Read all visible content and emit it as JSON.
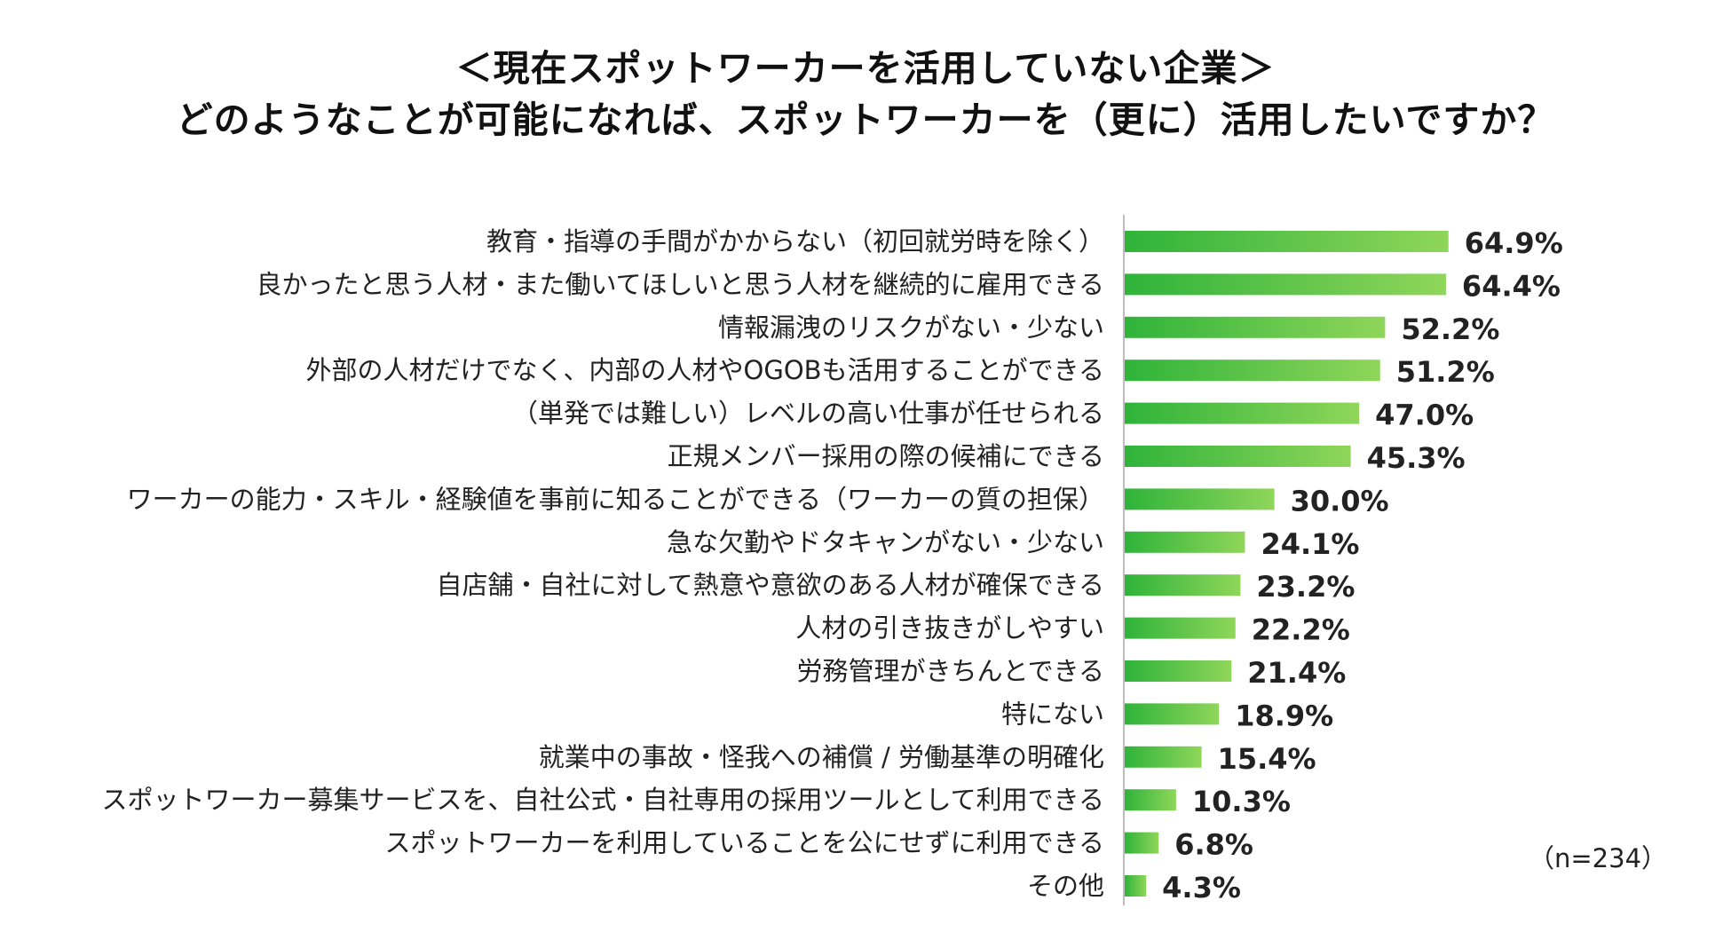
{
  "header": {
    "title_line1": "＜現在スポットワーカーを活用していない企業＞",
    "title_line2": "どのようなことが可能になれば、スポットワーカーを（更に）活用したいですか？"
  },
  "note": {
    "sample_size": "（n=234）"
  },
  "colors": {
    "bar_start": "#2fb33a",
    "bar_end": "#8fd65a",
    "axis": "#bdbdbd",
    "text": "#222222"
  },
  "chart_data": {
    "type": "bar",
    "orientation": "horizontal",
    "title": "どのようなことが可能になれば、スポットワーカーを（更に）活用したいですか？",
    "xlabel": "",
    "ylabel": "",
    "xlim": [
      0,
      100
    ],
    "value_suffix": "%",
    "categories": [
      "教育・指導の手間がかからない（初回就労時を除く）",
      "良かったと思う人材・また働いてほしいと思う人材を継続的に雇用できる",
      "情報漏洩のリスクがない・少ない",
      "外部の人材だけでなく、内部の人材やOGOBも活用することができる",
      "（単発では難しい）レベルの高い仕事が任せられる",
      "正規メンバー採用の際の候補にできる",
      "ワーカーの能力・スキル・経験値を事前に知ることができる（ワーカーの質の担保）",
      "急な欠勤やドタキャンがない・少ない",
      "自店舗・自社に対して熱意や意欲のある人材が確保できる",
      "人材の引き抜きがしやすい",
      "労務管理がきちんとできる",
      "特にない",
      "就業中の事故・怪我への補償 / 労働基準の明確化",
      "スポットワーカー募集サービスを、自社公式・自社専用の採用ツールとして利用できる",
      "スポットワーカーを利用していることを公にせずに利用できる",
      "その他"
    ],
    "values": [
      64.9,
      64.4,
      52.2,
      51.2,
      47.0,
      45.3,
      30.0,
      24.1,
      23.2,
      22.2,
      21.4,
      18.9,
      15.4,
      10.3,
      6.8,
      4.3
    ],
    "value_labels": [
      "64.9%",
      "64.4%",
      "52.2%",
      "51.2%",
      "47.0%",
      "45.3%",
      "30.0%",
      "24.1%",
      "23.2%",
      "22.2%",
      "21.4%",
      "18.9%",
      "15.4%",
      "10.3%",
      "6.8%",
      "4.3%"
    ],
    "grid": false,
    "legend": "none",
    "n": 234
  }
}
